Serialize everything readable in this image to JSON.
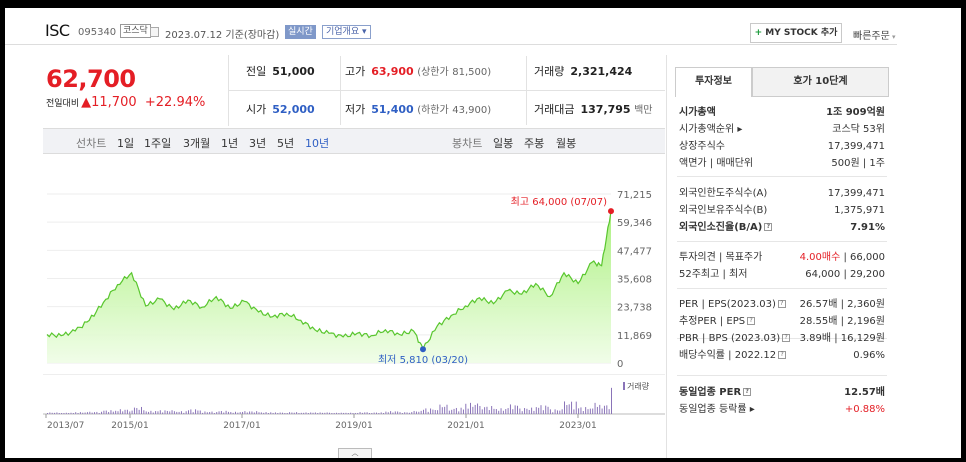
{
  "header": {
    "name": "ISC",
    "code": "095340",
    "market": "코스닥",
    "date": "2023.07.12 기준(장마감)",
    "realtime": "실시간",
    "corp_info": "기업개요",
    "my_stock": "MY STOCK 추가",
    "quick_order": "빠른주문"
  },
  "price": {
    "current": "62,700",
    "label": "전일대비",
    "change": "▲11,700",
    "change_pct": "+22.94%"
  },
  "stats": {
    "prev_label": "전일",
    "prev": "51,000",
    "high_label": "고가",
    "high": "63,900",
    "upper_label": "(상한가",
    "upper": "81,500)",
    "volume_label": "거래량",
    "volume": "2,321,424",
    "open_label": "시가",
    "open": "52,000",
    "low_label": "저가",
    "low": "51,400",
    "lower_label": "(하한가",
    "lower": "43,900)",
    "amount_label": "거래대금",
    "amount": "137,795",
    "amount_unit": "백만"
  },
  "period_tabs": {
    "line_label": "선차트",
    "items": [
      "1일",
      "1주일",
      "3개월",
      "1년",
      "3년",
      "5년",
      "10년"
    ],
    "active": "10년",
    "candle_label": "봉차트",
    "candle_items": [
      "일봉",
      "주봉",
      "월봉"
    ]
  },
  "chart_labels": {
    "max_label": "최고 64,000 (07/07)",
    "min_label": "최저 5,810 (03/20)",
    "vol_legend": "거래량"
  },
  "chart_data": {
    "type": "area",
    "title": "",
    "x_ticks": [
      "2013/07",
      "2015/01",
      "2017/01",
      "2019/01",
      "2021/01",
      "2023/01"
    ],
    "y_ticks": [
      71215,
      59346,
      47477,
      35608,
      23738,
      11869,
      0
    ],
    "y_tick_labels": [
      "71,215",
      "59,346",
      "47,477",
      "35,608",
      "23,738",
      "11,869",
      "0"
    ],
    "ylim": [
      0,
      71215
    ],
    "x_range": [
      "2013-07",
      "2023-07"
    ],
    "series": [
      {
        "x": [
          "2013-07",
          "2013-10",
          "2014-01",
          "2014-04",
          "2014-07",
          "2014-10",
          "2015-01",
          "2015-04",
          "2015-07",
          "2015-10",
          "2016-01",
          "2016-04",
          "2016-07",
          "2016-10",
          "2017-01",
          "2017-04",
          "2017-07",
          "2017-10",
          "2018-01",
          "2018-04",
          "2018-07",
          "2018-10",
          "2019-01",
          "2019-04",
          "2019-07",
          "2019-10",
          "2020-01",
          "2020-03",
          "2020-06",
          "2020-09",
          "2020-12",
          "2021-03",
          "2021-06",
          "2021-09",
          "2021-12",
          "2022-03",
          "2022-06",
          "2022-09",
          "2022-12",
          "2023-03",
          "2023-05",
          "2023-07"
        ],
        "values": [
          12000,
          11500,
          13500,
          18000,
          25500,
          33000,
          38000,
          24000,
          27000,
          22500,
          26500,
          23500,
          28000,
          23000,
          26000,
          21500,
          19500,
          21000,
          18000,
          14000,
          12500,
          11000,
          12500,
          11500,
          14000,
          12000,
          13500,
          5810,
          15500,
          20000,
          24000,
          27500,
          25000,
          30500,
          29000,
          33500,
          28000,
          38000,
          33500,
          42500,
          41000,
          64000
        ]
      }
    ],
    "high": {
      "value": 64000,
      "date": "07/07"
    },
    "low": {
      "value": 5810,
      "date": "03/20"
    },
    "volume_relative": [
      0.05,
      0.04,
      0.06,
      0.07,
      0.12,
      0.15,
      0.22,
      0.1,
      0.12,
      0.09,
      0.15,
      0.08,
      0.1,
      0.07,
      0.09,
      0.06,
      0.05,
      0.06,
      0.05,
      0.05,
      0.04,
      0.04,
      0.06,
      0.05,
      0.09,
      0.06,
      0.1,
      0.18,
      0.3,
      0.2,
      0.35,
      0.25,
      0.18,
      0.3,
      0.2,
      0.28,
      0.15,
      0.4,
      0.22,
      0.35,
      0.3,
      0.95
    ]
  },
  "right_panel": {
    "tab_active": "투자정보",
    "tab_other": "호가 10단계",
    "rows": [
      {
        "k": "시가총액",
        "v": "1조 909억원",
        "bold": true
      },
      {
        "k": "시가총액순위 ▸",
        "v": "코스닥 53위"
      },
      {
        "k": "상장주식수",
        "v": "17,399,471"
      },
      {
        "k": "액면가 | 매매단위",
        "v": "500원 | 1주"
      },
      {
        "k": "외국인한도주식수(A)",
        "v": "17,399,471"
      },
      {
        "k": "외국인보유주식수(B)",
        "v": "1,375,971"
      },
      {
        "k": "외국인소진율(B/A)",
        "v": "7.91%",
        "bold": true,
        "q": true
      },
      {
        "k": "투자의견 | 목표주가",
        "v": "4.00매수 | 66,000",
        "red_part": "4.00매수"
      },
      {
        "k": "52주최고 | 최저",
        "v": "64,000 | 29,200"
      },
      {
        "k": "PER | EPS(2023.03)",
        "v": "26.57배 | 2,360원",
        "q": true
      },
      {
        "k": "추정PER | EPS",
        "v": "28.55배 | 2,196원",
        "q": true
      },
      {
        "k": "PBR | BPS (2023.03)",
        "v": "3.89배 | 16,129원",
        "q": true
      },
      {
        "k": "배당수익률 | 2022.12",
        "v": "0.96%",
        "q": true
      },
      {
        "k": "동일업종 PER",
        "v": "12.57배",
        "bold": true,
        "q": true
      },
      {
        "k": "동일업종 등락률 ▸",
        "v": "+0.88%",
        "red": true
      }
    ]
  }
}
